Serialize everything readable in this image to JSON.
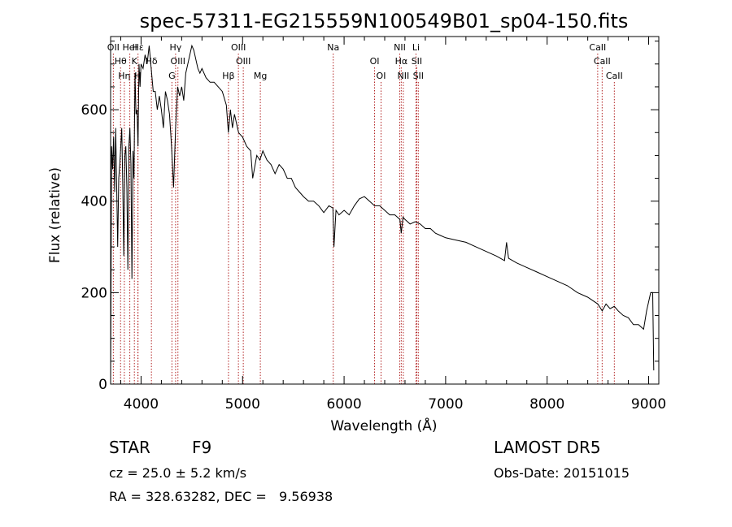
{
  "chart_data": {
    "type": "line",
    "title": "spec-57311-EG215559N100549B01_sp04-150.fits",
    "xlabel": "Wavelength (Å)",
    "ylabel": "Flux (relative)",
    "xlim": [
      3700,
      9100
    ],
    "ylim": [
      0,
      760
    ],
    "xticks": [
      4000,
      5000,
      6000,
      7000,
      8000,
      9000
    ],
    "yticks": [
      0,
      200,
      400,
      600
    ],
    "grid": false,
    "line_color": "#000000",
    "marker_color": "#b22222",
    "series": [
      {
        "x": [
          3700,
          3710,
          3720,
          3730,
          3740,
          3750,
          3760,
          3770,
          3780,
          3790,
          3800,
          3810,
          3820,
          3830,
          3840,
          3850,
          3860,
          3870,
          3880,
          3890,
          3900,
          3910,
          3920,
          3930,
          3940,
          3950,
          3960,
          3970,
          3980,
          3990,
          4000,
          4020,
          4040,
          4060,
          4080,
          4100,
          4120,
          4140,
          4160,
          4180,
          4200,
          4220,
          4240,
          4260,
          4280,
          4300,
          4320,
          4340,
          4360,
          4380,
          4400,
          4420,
          4440,
          4460,
          4480,
          4500,
          4520,
          4540,
          4560,
          4580,
          4600,
          4640,
          4680,
          4720,
          4760,
          4800,
          4840,
          4860,
          4880,
          4900,
          4920,
          4960,
          5000,
          5040,
          5080,
          5100,
          5140,
          5170,
          5200,
          5240,
          5280,
          5320,
          5360,
          5400,
          5440,
          5480,
          5520,
          5560,
          5600,
          5650,
          5700,
          5750,
          5800,
          5850,
          5890,
          5900,
          5920,
          5950,
          6000,
          6050,
          6100,
          6150,
          6200,
          6250,
          6300,
          6350,
          6400,
          6450,
          6500,
          6550,
          6563,
          6580,
          6600,
          6650,
          6700,
          6750,
          6800,
          6850,
          6900,
          6950,
          7000,
          7100,
          7200,
          7300,
          7400,
          7500,
          7580,
          7600,
          7620,
          7700,
          7800,
          7900,
          8000,
          8100,
          8200,
          8300,
          8400,
          8500,
          8542,
          8580,
          8620,
          8662,
          8700,
          8750,
          8800,
          8850,
          8900,
          8950,
          8980,
          9000,
          9020,
          9040,
          9050
        ],
        "y": [
          0,
          520,
          470,
          540,
          420,
          560,
          430,
          300,
          450,
          480,
          520,
          560,
          430,
          280,
          500,
          520,
          430,
          250,
          520,
          560,
          480,
          230,
          510,
          450,
          680,
          590,
          600,
          520,
          700,
          650,
          700,
          690,
          720,
          700,
          740,
          690,
          640,
          640,
          600,
          630,
          600,
          560,
          640,
          620,
          590,
          520,
          430,
          560,
          650,
          630,
          650,
          620,
          680,
          700,
          720,
          740,
          730,
          710,
          690,
          680,
          690,
          670,
          660,
          660,
          650,
          640,
          610,
          550,
          600,
          560,
          590,
          550,
          540,
          520,
          510,
          450,
          500,
          490,
          510,
          490,
          480,
          460,
          480,
          470,
          450,
          450,
          430,
          420,
          410,
          400,
          400,
          390,
          375,
          390,
          385,
          300,
          380,
          370,
          380,
          370,
          390,
          405,
          410,
          400,
          390,
          390,
          380,
          370,
          370,
          360,
          330,
          365,
          360,
          350,
          355,
          350,
          340,
          340,
          330,
          325,
          320,
          315,
          310,
          300,
          290,
          280,
          270,
          310,
          275,
          265,
          255,
          245,
          235,
          225,
          215,
          200,
          190,
          175,
          160,
          175,
          165,
          170,
          160,
          150,
          145,
          130,
          130,
          120,
          160,
          180,
          200,
          200,
          30
        ]
      }
    ],
    "lines": [
      {
        "wl": 3727,
        "label": "OII"
      },
      {
        "wl": 3798,
        "label": "Hθ"
      },
      {
        "wl": 3835,
        "label": "Hη"
      },
      {
        "wl": 3889,
        "label": "HeI"
      },
      {
        "wl": 3934,
        "label": "K"
      },
      {
        "wl": 3968,
        "label": "H"
      },
      {
        "wl": 3970,
        "label": "Hε"
      },
      {
        "wl": 4102,
        "label": "Hδ"
      },
      {
        "wl": 4304,
        "label": "G"
      },
      {
        "wl": 4340,
        "label": "Hγ"
      },
      {
        "wl": 4363,
        "label": "OIII"
      },
      {
        "wl": 4861,
        "label": "Hβ"
      },
      {
        "wl": 4959,
        "label": "OIII"
      },
      {
        "wl": 5007,
        "label": "OIII"
      },
      {
        "wl": 5175,
        "label": "Mg"
      },
      {
        "wl": 5893,
        "label": "Na"
      },
      {
        "wl": 6300,
        "label": "OI"
      },
      {
        "wl": 6364,
        "label": "OI"
      },
      {
        "wl": 6548,
        "label": "NII"
      },
      {
        "wl": 6563,
        "label": "Hα"
      },
      {
        "wl": 6583,
        "label": "NII"
      },
      {
        "wl": 6708,
        "label": "Li"
      },
      {
        "wl": 6716,
        "label": "SII"
      },
      {
        "wl": 6731,
        "label": "SII"
      },
      {
        "wl": 8498,
        "label": "CaII"
      },
      {
        "wl": 8542,
        "label": "CaII"
      },
      {
        "wl": 8662,
        "label": "CaII"
      }
    ]
  },
  "footer": {
    "object_class": "STAR",
    "subclass": "F9",
    "survey": "LAMOST DR5",
    "redshift": "cz = 25.0 ± 5.2 km/s",
    "obs_date": "Obs-Date: 20151015",
    "coords": "RA = 328.63282, DEC =   9.56938"
  }
}
